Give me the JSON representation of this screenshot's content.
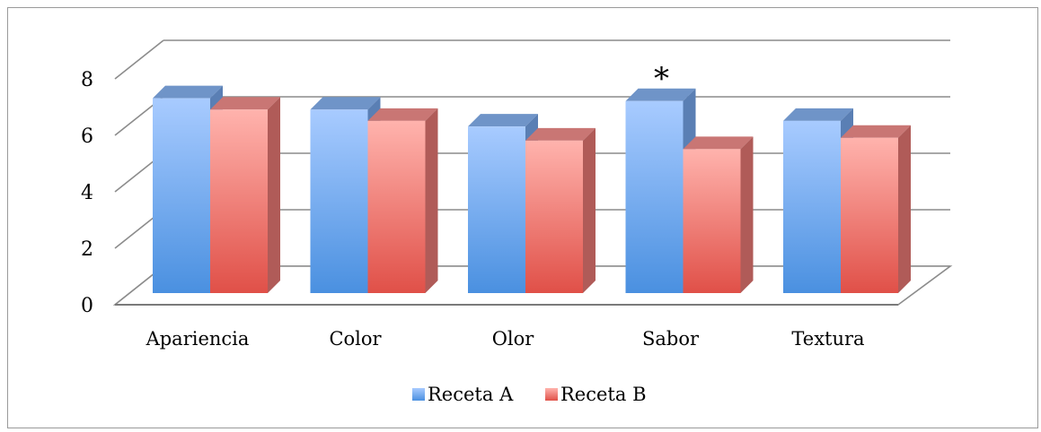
{
  "chart_data": {
    "type": "bar",
    "title": "",
    "xlabel": "",
    "ylabel": "",
    "categories": [
      "Apariencia",
      "Color",
      "Olor",
      "Sabor",
      "Textura"
    ],
    "series": [
      {
        "name": "Receta A",
        "values": [
          6.9,
          6.5,
          5.9,
          6.8,
          6.1
        ]
      },
      {
        "name": "Receta B",
        "values": [
          6.5,
          6.1,
          5.4,
          5.1,
          5.5
        ]
      }
    ],
    "ylim": [
      0,
      8
    ],
    "yticks": [
      "0",
      "2",
      "4",
      "6",
      "8"
    ],
    "grid": true,
    "style": "3d-clustered-column",
    "legend": "bottom",
    "annotations": [
      {
        "text": "*",
        "category": "Sabor"
      }
    ],
    "colors": {
      "series_a": "#5a9de8",
      "series_b": "#e8605a",
      "grid": "#8c8c8c"
    }
  }
}
